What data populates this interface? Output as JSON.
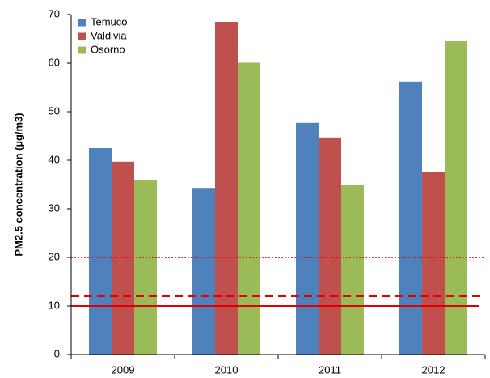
{
  "chart_data": {
    "type": "bar",
    "y_label": "PM2.5 concentration (µg/m3)",
    "categories": [
      "2009",
      "2010",
      "2011",
      "2012"
    ],
    "series": [
      {
        "name": "Temuco",
        "color": "#4f81bd",
        "values": [
          42.5,
          34.3,
          47.7,
          56.2
        ]
      },
      {
        "name": "Valdivia",
        "color": "#c0504d",
        "values": [
          39.7,
          68.5,
          44.7,
          37.5
        ]
      },
      {
        "name": "Osorno",
        "color": "#9bbb59",
        "values": [
          36.0,
          60.1,
          35.0,
          64.5
        ]
      }
    ],
    "ylim": [
      0,
      70
    ],
    "yticks": [
      0,
      10,
      20,
      30,
      40,
      50,
      60,
      70
    ],
    "grid": false,
    "legend": "upper left",
    "reference_lines": [
      {
        "value": 10,
        "style": "solid",
        "color": "#e00000"
      },
      {
        "value": 12,
        "style": "dashed",
        "color": "#e00000"
      },
      {
        "value": 20,
        "style": "dotted",
        "color": "#e00000"
      }
    ]
  }
}
